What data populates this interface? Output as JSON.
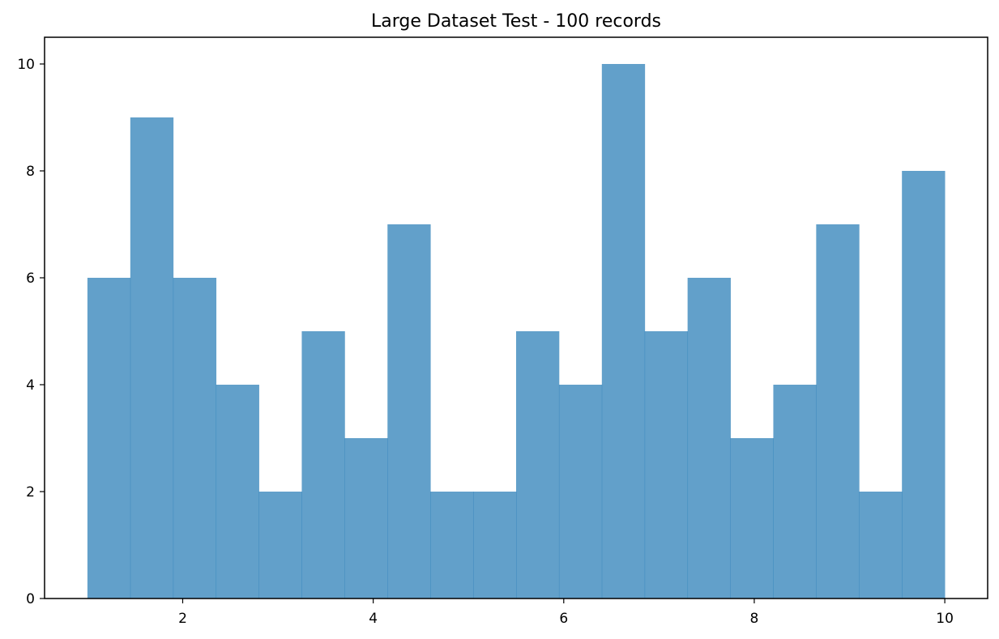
{
  "chart_data": {
    "type": "bar",
    "title": "Large Dataset Test - 100 records",
    "xlabel": "",
    "ylabel": "",
    "bin_edges": [
      1.0,
      1.45,
      1.9,
      2.35,
      2.8,
      3.25,
      3.7,
      4.15,
      4.6,
      5.05,
      5.5,
      5.95,
      6.4,
      6.85,
      7.3,
      7.75,
      8.2,
      8.65,
      9.1,
      9.55,
      10.0
    ],
    "values": [
      6,
      9,
      6,
      4,
      2,
      5,
      3,
      7,
      2,
      2,
      5,
      4,
      10,
      5,
      6,
      3,
      4,
      7,
      2,
      8
    ],
    "xlim": [
      0.55,
      10.45
    ],
    "ylim": [
      0,
      10.5
    ],
    "xticks": [
      2,
      4,
      6,
      8,
      10
    ],
    "yticks": [
      0,
      2,
      4,
      6,
      8,
      10
    ],
    "grid": false,
    "bar_color": "#1f77b4",
    "bar_opacity": 0.7
  }
}
